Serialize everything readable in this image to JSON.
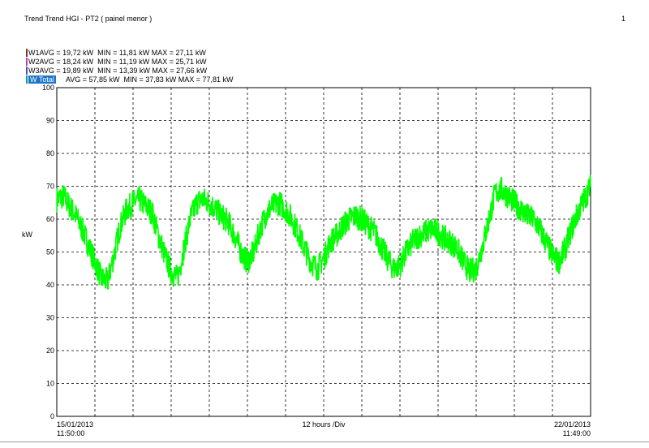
{
  "header": {
    "title": "Trend Trend HGI - PT2 ( painel menor )",
    "page_number": "1"
  },
  "legend": [
    {
      "text": "W1AVG = 19,72 kW  MIN = 11,81 kW MAX = 27,11 kW",
      "color": "#7a3a20"
    },
    {
      "text": "W2AVG = 18,24 kW  MIN = 11,19 kW MAX = 25,71 kW",
      "color": "#c040c0"
    },
    {
      "text": "W3AVG = 19,89 kW  MIN = 13,39 kW MAX = 27,66 kW",
      "color": "#5050c0"
    },
    {
      "label": "W Total",
      "stats": "     AVG = 57,85 kW  MIN = 37,83 kW MAX = 77,81 kW",
      "color": "#00a0a0",
      "highlight": "#1e73c8"
    }
  ],
  "chart_data": {
    "type": "line",
    "ylabel": "kW",
    "ylim": [
      0,
      100
    ],
    "yticks": [
      0,
      10,
      20,
      30,
      40,
      50,
      60,
      70,
      80,
      90,
      100
    ],
    "x_start": [
      "15/01/2013",
      "11:50:00"
    ],
    "x_end": [
      "22/01/2013",
      "11:49:00"
    ],
    "x_division_label": "12 hours /Div",
    "x_divisions": 14,
    "grid": true,
    "series": [
      {
        "color": "#00ff00",
        "hours": [
          0,
          2,
          4,
          6,
          8,
          10,
          12,
          14,
          16,
          18,
          20,
          22,
          24,
          26,
          28,
          30,
          32,
          34,
          36,
          38,
          40,
          42,
          44,
          46,
          48,
          50,
          52,
          54,
          56,
          58,
          60,
          62,
          64,
          66,
          68,
          70,
          72,
          74,
          76,
          78,
          80,
          82,
          84,
          86,
          88,
          90,
          92,
          94,
          96,
          98,
          100,
          102,
          104,
          106,
          108,
          110,
          112,
          114,
          116,
          118,
          120,
          122,
          124,
          126,
          128,
          130,
          132,
          134,
          136,
          138,
          140,
          142,
          144,
          146,
          148,
          150,
          152,
          154,
          156,
          158,
          160,
          162,
          164,
          166,
          168
        ],
        "values": [
          66,
          67,
          64,
          61,
          57,
          52,
          47,
          42,
          41,
          49,
          58,
          63,
          65,
          66,
          64,
          62,
          55,
          49,
          44,
          42,
          51,
          60,
          65,
          66,
          65,
          63,
          61,
          59,
          55,
          50,
          47,
          50,
          57,
          62,
          64,
          65,
          63,
          60,
          56,
          51,
          47,
          45,
          48,
          53,
          55,
          58,
          60,
          61,
          60,
          58,
          56,
          52,
          48,
          45,
          46,
          50,
          53,
          55,
          56,
          57,
          56,
          54,
          53,
          51,
          47,
          44,
          45,
          52,
          60,
          68,
          69,
          67,
          65,
          63,
          61,
          60,
          57,
          53,
          49,
          47,
          51,
          57,
          62,
          66,
          70
        ]
      }
    ]
  }
}
